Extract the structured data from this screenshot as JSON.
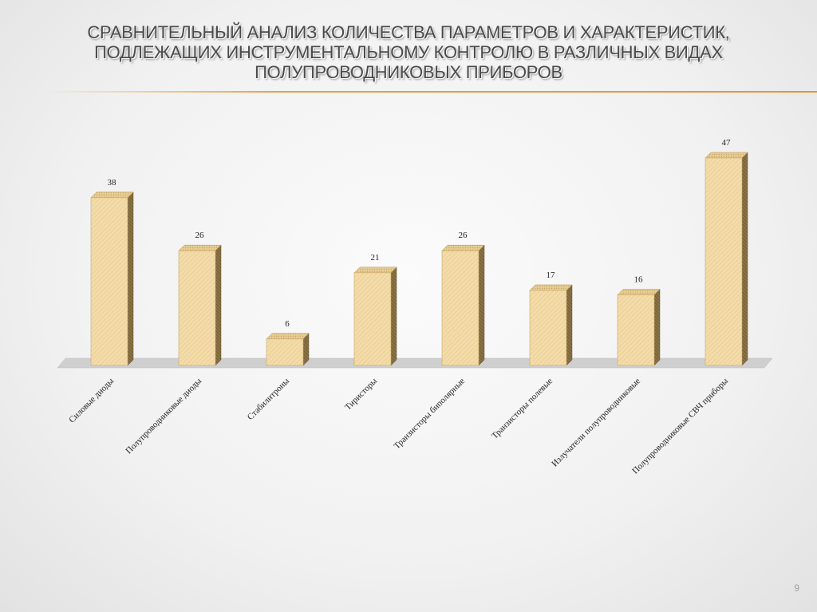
{
  "slide": {
    "title": "СРАВНИТЕЛЬНЫЙ АНАЛИЗ КОЛИЧЕСТВА ПАРАМЕТРОВ И ХАРАКТЕРИСТИК, ПОДЛЕЖАЩИХ ИНСТРУМЕНТАЛЬНОМУ КОНТРОЛЮ В РАЗЛИЧНЫХ ВИДАХ ПОЛУПРОВОДНИКОВЫХ ПРИБОРОВ",
    "page_number": "9",
    "accent_color": "#e8962a"
  },
  "chart_data": {
    "type": "bar",
    "style": "3d",
    "categories": [
      "Силовые диоды",
      "Полупроводниковые диоды",
      "Стабилитроны",
      "Тиристоры",
      "Транзисторы биполярные",
      "Транзисторы полевые",
      "Излучатели полупроводниковые",
      "Полупроводниковые СВЧ приборы"
    ],
    "values": [
      38,
      26,
      6,
      21,
      26,
      17,
      16,
      47
    ],
    "data_labels": [
      "38",
      "26",
      "6",
      "21",
      "26",
      "17",
      "16",
      "47"
    ],
    "ylim": [
      0,
      47
    ],
    "grid": false,
    "legend": "none",
    "bar_color": "#f1d9a6",
    "bar_side_color": "#8a7345",
    "floor_color": "#c9c9c9"
  }
}
